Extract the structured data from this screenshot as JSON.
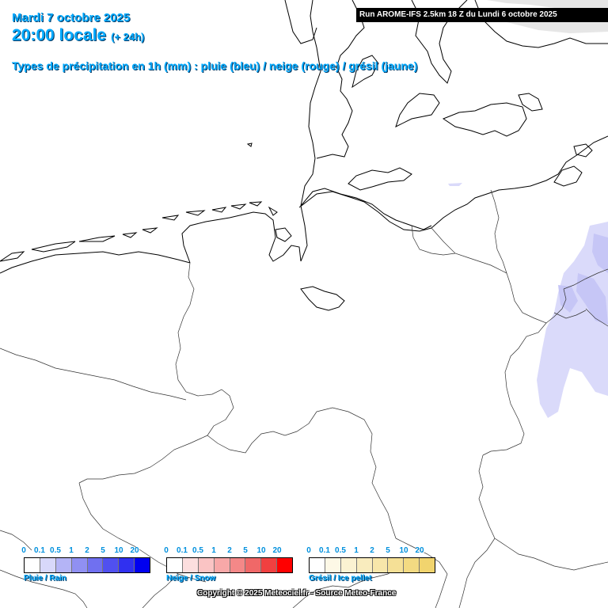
{
  "header": {
    "date": "Mardi 7 octobre 2025",
    "time": "20:00 locale",
    "lead": "(+ 24h)",
    "precip_types": "Types de précipitation en 1h (mm) : pluie (bleu) / neige (rouge) / grésil (jaune)"
  },
  "run_info": "Run AROME-IFS 2.5km 18 Z du Lundi 6 octobre 2025",
  "legends": {
    "rain": {
      "label": "Pluie / Rain",
      "ticks": [
        "0",
        "0.1",
        "0.5",
        "1",
        "2",
        "5",
        "10",
        "20"
      ],
      "colors": [
        "#ffffff",
        "#d8d8fa",
        "#b4b4f6",
        "#9090f2",
        "#7070f0",
        "#5050f0",
        "#3030f0",
        "#0000f0"
      ]
    },
    "snow": {
      "label": "Neige / Snow",
      "ticks": [
        "0",
        "0.1",
        "0.5",
        "1",
        "2",
        "5",
        "10",
        "20"
      ],
      "colors": [
        "#ffffff",
        "#fcdede",
        "#fac4c4",
        "#f8a8a8",
        "#f48888",
        "#f06868",
        "#f04040",
        "#ff0000"
      ]
    },
    "sleet": {
      "label": "Grésil / Ice pellet",
      "ticks": [
        "0",
        "0.1",
        "0.5",
        "1",
        "2",
        "5",
        "10",
        "20"
      ],
      "colors": [
        "#ffffff",
        "#fdf8e6",
        "#fbf2d2",
        "#f9ecbe",
        "#f7e6aa",
        "#f5e096",
        "#f3da82",
        "#f1d46e"
      ]
    }
  },
  "colors": {
    "precip_light": "#dadafa",
    "precip_medium": "#c6c6f6",
    "header_text": "#00aaff"
  },
  "copyright": "Copyright © 2025 Meteociel.fr - Source Meteo-France"
}
